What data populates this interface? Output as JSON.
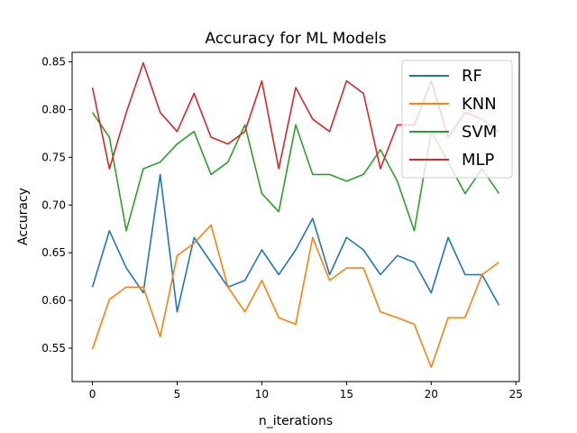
{
  "chart_data": {
    "type": "line",
    "title": "Accuracy for ML Models",
    "xlabel": "n_iterations",
    "ylabel": "Accuracy",
    "xlim": [
      -1.2,
      25.2
    ],
    "ylim": [
      0.515,
      0.86
    ],
    "xticks": [
      0,
      5,
      10,
      15,
      20,
      25
    ],
    "yticks": [
      0.55,
      0.6,
      0.65,
      0.7,
      0.75,
      0.8,
      0.85
    ],
    "ytick_labels": [
      "0.55",
      "0.60",
      "0.65",
      "0.70",
      "0.75",
      "0.80",
      "0.85"
    ],
    "grid": false,
    "legend_position": "top-right",
    "x": [
      0,
      1,
      2,
      3,
      4,
      5,
      6,
      7,
      8,
      9,
      10,
      11,
      12,
      13,
      14,
      15,
      16,
      17,
      18,
      19,
      20,
      21,
      22,
      23,
      24
    ],
    "series": [
      {
        "name": "RF",
        "color": "#1f77b4",
        "values": [
          0.614,
          0.673,
          0.634,
          0.608,
          0.732,
          0.588,
          0.666,
          0.64,
          0.614,
          0.621,
          0.653,
          0.627,
          0.653,
          0.686,
          0.627,
          0.666,
          0.653,
          0.627,
          0.647,
          0.64,
          0.608,
          0.666,
          0.627,
          0.627,
          0.595
        ]
      },
      {
        "name": "KNN",
        "color": "#ff7f0e",
        "values": [
          0.549,
          0.601,
          0.614,
          0.614,
          0.562,
          0.647,
          0.66,
          0.679,
          0.614,
          0.588,
          0.621,
          0.582,
          0.575,
          0.666,
          0.621,
          0.634,
          0.634,
          0.588,
          0.582,
          0.575,
          0.53,
          0.582,
          0.582,
          0.627,
          0.64
        ]
      },
      {
        "name": "SVM",
        "color": "#2ca02c",
        "values": [
          0.797,
          0.771,
          0.673,
          0.738,
          0.745,
          0.764,
          0.777,
          0.732,
          0.745,
          0.784,
          0.712,
          0.693,
          0.784,
          0.732,
          0.732,
          0.725,
          0.732,
          0.758,
          0.725,
          0.673,
          0.777,
          0.745,
          0.712,
          0.738,
          0.712
        ]
      },
      {
        "name": "MLP",
        "color": "#d62728",
        "values": [
          0.823,
          0.738,
          0.797,
          0.849,
          0.797,
          0.777,
          0.817,
          0.771,
          0.764,
          0.777,
          0.83,
          0.738,
          0.823,
          0.79,
          0.777,
          0.83,
          0.817,
          0.738,
          0.784,
          0.784,
          0.83,
          0.771,
          0.797,
          0.79,
          0.777
        ]
      }
    ]
  }
}
